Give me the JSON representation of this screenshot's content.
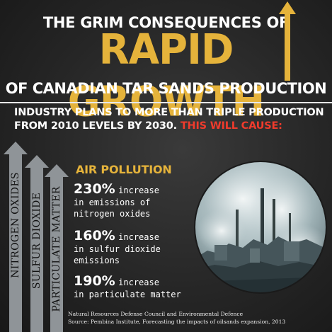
{
  "header": {
    "line1": "THE GRIM CONSEQUENCES OF",
    "line2": "RAPID GROWTH",
    "line3": "OF CANADIAN TAR SANDS PRODUCTION"
  },
  "intro": {
    "text": "INDUSTRY PLANS TO MORE THAN TRIPLE PRODUCTION FROM 2010 LEVELS BY 2030.",
    "highlight": "THIS WILL CAUSE:"
  },
  "arrows": [
    {
      "label": "NITROGEN OXIDES",
      "icon": "up-arrow-icon"
    },
    {
      "label": "SULFUR DIOXIDE",
      "icon": "up-arrow-icon"
    },
    {
      "label": "PARTICULATE MATTER",
      "icon": "up-arrow-icon"
    }
  ],
  "section": {
    "title": "AIR POLLUTION"
  },
  "stats": [
    {
      "value": "230%",
      "word": "increase",
      "desc1": "in emissions of",
      "desc2": "nitrogen oxides"
    },
    {
      "value": "160%",
      "word": "increase",
      "desc1": "in sulfur dioxide",
      "desc2": "emissions"
    },
    {
      "value": "190%",
      "word": "increase",
      "desc1": "in particulate matter",
      "desc2": ""
    }
  ],
  "credits": {
    "line1": "Natural Resources Defense Council and Environmental Defence",
    "line2": "Source: Pembina Institute, Forecasting the impacts of oilsands expansion, 2013"
  },
  "colors": {
    "accent_gold": "#e5b33b",
    "accent_red": "#ef3b2c",
    "arrow_gray": "#8f9498"
  }
}
